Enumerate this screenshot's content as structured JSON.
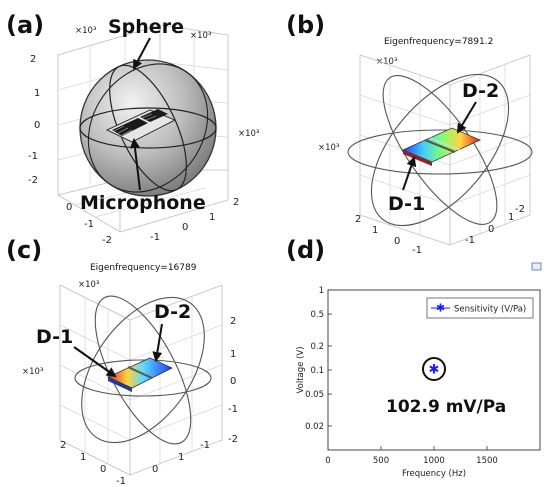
{
  "panels": {
    "a": {
      "label": "(a)",
      "multiplier": "×10³",
      "multiplier2": "×10³",
      "multiplier3": "×10³",
      "sphere_label": "Sphere",
      "microphone_label": "Microphone",
      "z_ticks": [
        "2",
        "1",
        "0",
        "-1",
        "-2"
      ],
      "x_ticks": [
        "0",
        "-1",
        "-2"
      ],
      "y_ticks": [
        "2",
        "1",
        "0",
        "-1"
      ]
    },
    "b": {
      "label": "(b)",
      "eigenfrequency": "Eigenfrequency=7891.2",
      "multiplier": "×10³",
      "multiplier2": "×10³",
      "d1": "D-1",
      "d2": "D-2",
      "x_ticks": [
        "1",
        "0",
        "-1"
      ],
      "y_ticks": [
        "2",
        "1",
        "0",
        "-1",
        "-2"
      ]
    },
    "c": {
      "label": "(c)",
      "eigenfrequency": "Eigenfrequency=16789",
      "multiplier": "×10³",
      "multiplier2": "×10³",
      "d1": "D-1",
      "d2": "D-2",
      "z_ticks": [
        "2",
        "1",
        "0",
        "-1",
        "-2"
      ],
      "x_ticks": [
        "2",
        "1",
        "0",
        "-1"
      ],
      "y_ticks": [
        "1",
        "0",
        "-1"
      ]
    },
    "d": {
      "label": "(d)",
      "legend": "Sensitivity (V/Pa)",
      "annotation": "102.9 mV/Pa"
    }
  },
  "chart_data": {
    "type": "scatter",
    "title": "",
    "xlabel": "Frequency (Hz)",
    "ylabel": "Voltage (V)",
    "xlim": [
      0,
      2000
    ],
    "ylim": [
      0.01,
      1
    ],
    "y_scale": "log",
    "x_ticks": [
      0,
      500,
      1000,
      1500
    ],
    "x_tick_labels": [
      "0",
      "500",
      "1000",
      "1500"
    ],
    "y_ticks": [
      1,
      0.5,
      0.2,
      0.1,
      0.05,
      0.02
    ],
    "y_tick_labels": [
      "1",
      "0.5",
      "0.2",
      "0.1",
      "0.05",
      "0.02"
    ],
    "series": [
      {
        "name": "Sensitivity (V/Pa)",
        "marker": "asterisk",
        "color": "#1a1aff",
        "x": [
          1000
        ],
        "y": [
          0.1029
        ]
      }
    ],
    "legend_position": "top-right",
    "grid": false
  }
}
